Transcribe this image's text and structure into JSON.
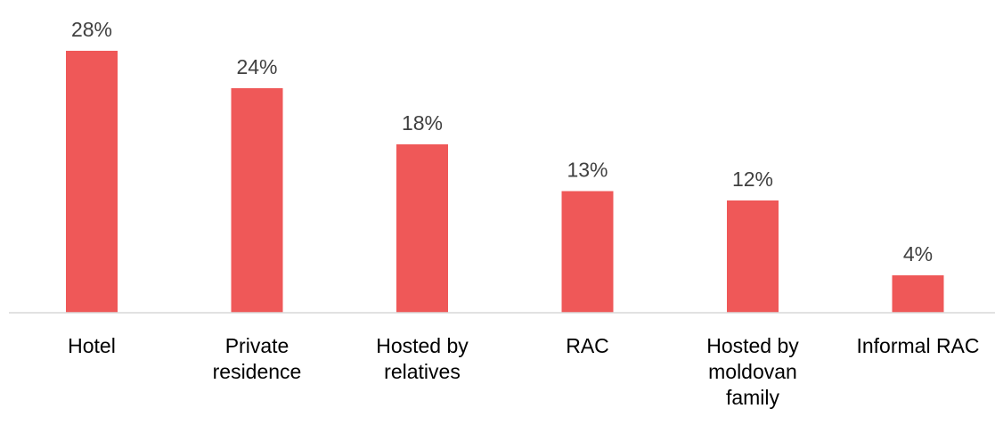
{
  "chart_data": {
    "type": "bar",
    "categories": [
      [
        "Hotel"
      ],
      [
        "Private",
        "residence"
      ],
      [
        "Hosted by",
        "relatives"
      ],
      [
        "RAC"
      ],
      [
        "Hosted by",
        "moldovan",
        "family"
      ],
      [
        "Informal RAC"
      ]
    ],
    "values": [
      28,
      24,
      18,
      13,
      12,
      4
    ],
    "value_labels": [
      "28%",
      "24%",
      "18%",
      "13%",
      "12%",
      "4%"
    ],
    "ylim": [
      0,
      28
    ],
    "grid": false,
    "legend": "none",
    "colors": {
      "bar": "#EF5858",
      "axis": "#d9d9d9",
      "value_text": "#404040",
      "category_text": "#000000"
    }
  }
}
